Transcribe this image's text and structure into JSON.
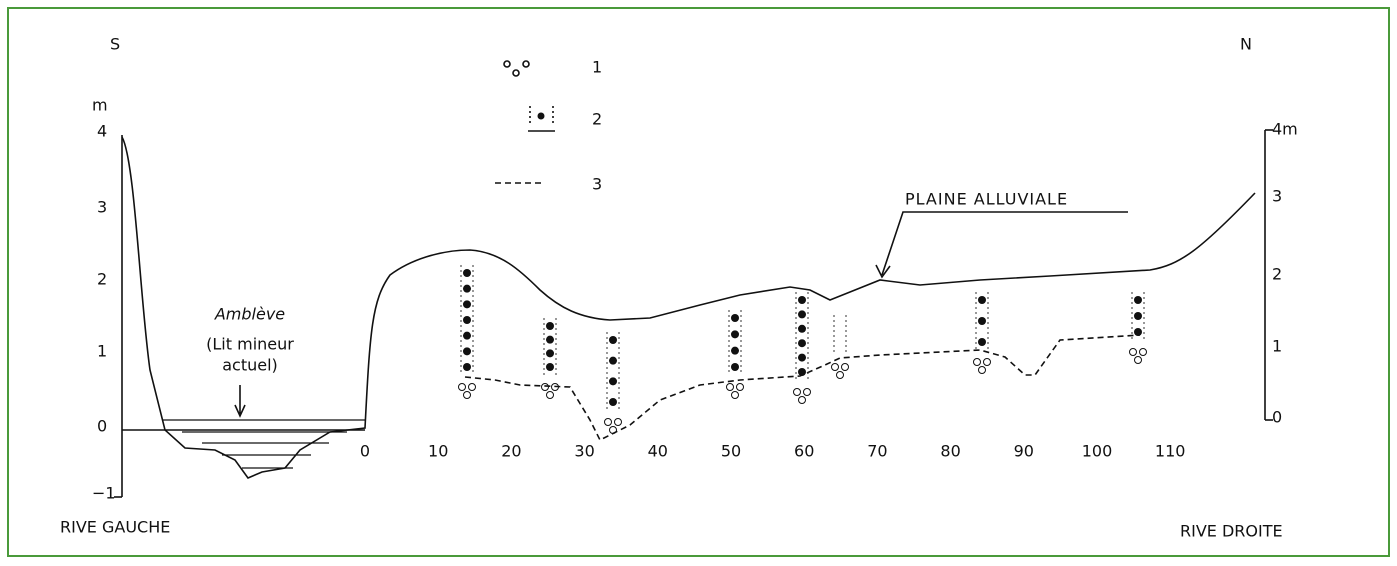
{
  "header": {
    "south": "S",
    "north": "N"
  },
  "left_axis": {
    "unit": "m",
    "ticks": [
      "4",
      "3",
      "2",
      "1",
      "0",
      "−1"
    ]
  },
  "right_axis": {
    "ticks": [
      "4m",
      "3",
      "2",
      "1",
      "0"
    ]
  },
  "bottom_axis": {
    "ticks": [
      "0",
      "10",
      "20",
      "30",
      "40",
      "50",
      "60",
      "70",
      "80",
      "90",
      "100",
      "110"
    ]
  },
  "labels": {
    "left_bank": "RIVE GAUCHE",
    "right_bank": "RIVE DROITE",
    "plain": "PLAINE ALLUVIALE",
    "river": "Amblève",
    "river_note_1": "(Lit mineur",
    "river_note_2": "actuel)"
  },
  "legend": {
    "items": [
      "1",
      "2",
      "3"
    ]
  }
}
